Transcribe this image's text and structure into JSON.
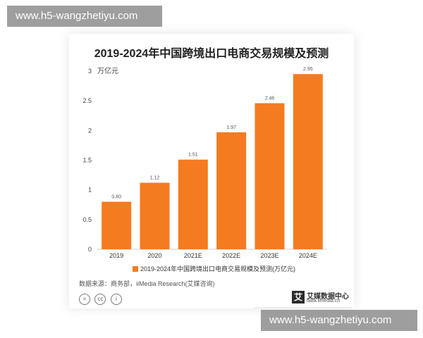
{
  "watermark_top": "www.h5-wangzhetiyu.com",
  "watermark_bottom": "www.h5-wangzhetiyu.com",
  "source": "数据来源：商务部，iiMedia Research(艾媒咨询)",
  "cc_icons": [
    "=",
    "cc",
    "i"
  ],
  "logo": {
    "mark": "艾",
    "name": "艾媒数据中心",
    "url": "data.iimedia.cn"
  },
  "colors": {
    "bar": "#f47b20",
    "watermark": "#7b7b7b"
  },
  "chart_data": {
    "type": "bar",
    "title": "2019-2024年中国跨境出口电商交易规模及预测",
    "unit": "万亿元",
    "categories": [
      "2019",
      "2020",
      "2021E",
      "2022E",
      "2023E",
      "2024E"
    ],
    "values": [
      0.8,
      1.12,
      1.51,
      1.97,
      2.46,
      2.95
    ],
    "value_labels": [
      "0.80",
      "1.12",
      "1.51",
      "1.97",
      "2.46",
      "2.95"
    ],
    "y_ticks": [
      "0",
      "0.5",
      "1",
      "1.5",
      "2",
      "2.5",
      "3"
    ],
    "ylim": [
      0,
      3
    ],
    "grid": false,
    "legend": {
      "label": "2019-2024年中国跨境出口电商交易规模及预测(万亿元)",
      "position": "bottom"
    }
  }
}
